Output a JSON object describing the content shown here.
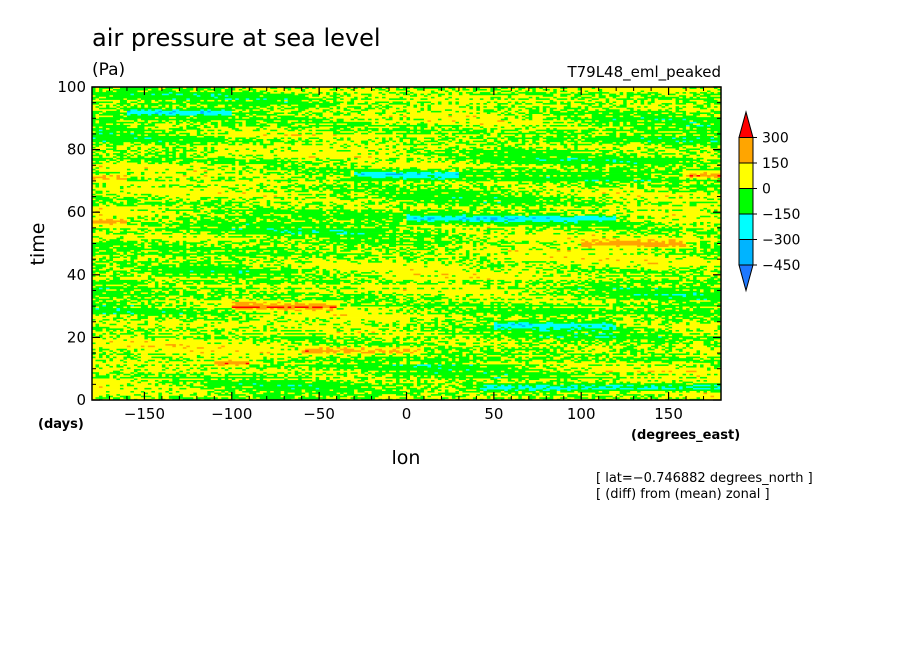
{
  "chart_data": {
    "type": "heatmap",
    "title": "air pressure at sea level",
    "units": "(Pa)",
    "experiment": "T79L48_eml_peaked",
    "xlabel": "lon",
    "xunits": "(degrees_east)",
    "ylabel": "time",
    "yunits": "(days)",
    "xlim": [
      -180,
      180
    ],
    "ylim": [
      0,
      100
    ],
    "xticks": [
      -150,
      -100,
      -50,
      0,
      50,
      100,
      150
    ],
    "xtick_labels": [
      "−150",
      "−100",
      "−50",
      "0",
      "50",
      "100",
      "150"
    ],
    "yticks": [
      0,
      20,
      40,
      60,
      80,
      100
    ],
    "ytick_labels": [
      "0",
      "20",
      "40",
      "60",
      "80",
      "100"
    ],
    "annotations": [
      "[ lat=−0.746882 degrees_north ]",
      "[ (diff) from (mean) zonal ]"
    ],
    "colorbar": {
      "levels": [
        -450,
        -300,
        -150,
        0,
        150,
        300
      ],
      "labels": [
        "300",
        "150",
        "0",
        "−150",
        "−300",
        "−450"
      ],
      "colors": [
        "#1e78ff",
        "#00b4ff",
        "#00ffff",
        "#00ff00",
        "#ffff00",
        "#ffa500",
        "#ff0000"
      ],
      "extend": "both"
    },
    "field_structure": {
      "dominant_ranges": [
        "-150 to 0",
        "0 to 150"
      ],
      "positive_streaks": [
        {
          "time": 71,
          "lon": [
            -180,
            -160
          ],
          "level": "150 to 300"
        },
        {
          "time": 57,
          "lon": [
            -180,
            -160
          ],
          "level": "150 to 300"
        },
        {
          "time": 30,
          "lon": [
            -100,
            -40
          ],
          "level": "150 to 300"
        },
        {
          "time": 12,
          "lon": [
            -110,
            -90
          ],
          "level": "150 to 300"
        },
        {
          "time": 16,
          "lon": [
            -60,
            10
          ],
          "level": "0 to 300"
        },
        {
          "time": 72,
          "lon": [
            160,
            180
          ],
          "level": "150 to 300"
        },
        {
          "time": 50,
          "lon": [
            100,
            160
          ],
          "level": "150 to 300"
        }
      ],
      "negative_streaks": [
        {
          "time": 92,
          "lon": [
            -160,
            -100
          ],
          "level": "-300 to -150"
        },
        {
          "time": 58,
          "lon": [
            0,
            120
          ],
          "level": "-300 to -150"
        },
        {
          "time": 72,
          "lon": [
            -30,
            30
          ],
          "level": "-300 to -150"
        },
        {
          "time": 24,
          "lon": [
            50,
            120
          ],
          "level": "-300 to -150"
        },
        {
          "time": 4,
          "lon": [
            40,
            180
          ],
          "level": "-300 to -150"
        }
      ]
    }
  }
}
